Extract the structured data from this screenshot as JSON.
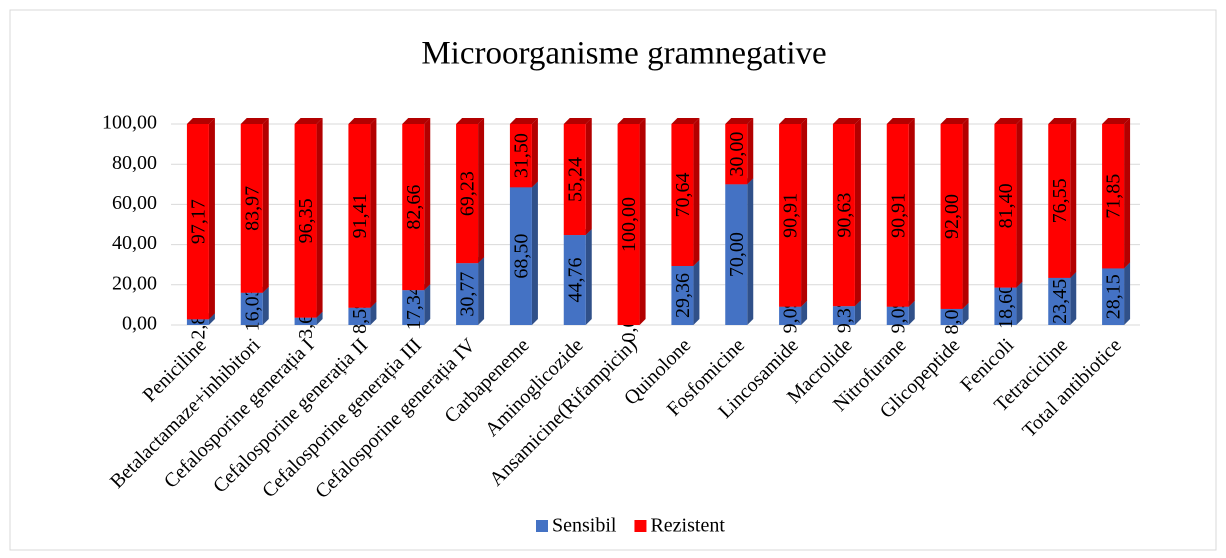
{
  "chart_data": {
    "type": "stacked_bar",
    "title": "Microorganisme gramnegative",
    "categories": [
      "Peniciline",
      "Betalactamaze+inhibitori",
      "Cefalosporine generația I",
      "Cefalosporine generația II",
      "Cefalosporine generația III",
      "Cefalosporine generația IV",
      "Carbapeneme",
      "Aminoglicozide",
      "Ansamicine(Rifampicin)",
      "Quinolone",
      "Fosfomicine",
      "Lincosamide",
      "Macrolide",
      "Nitrofurane",
      "Glicopeptide",
      "Fenicoli",
      "Tetracicline",
      "Total antibiotice"
    ],
    "series": [
      {
        "name": "Sensibil",
        "color": "#4472c4",
        "values": [
          2.83,
          16.03,
          3.65,
          8.59,
          17.34,
          30.77,
          68.5,
          44.76,
          0,
          29.36,
          70,
          9.09,
          9.37,
          9.09,
          8,
          18.6,
          23.45,
          28.15
        ],
        "value_labels": [
          "2,83",
          "16,03",
          "3,65",
          "8,59",
          "17,34",
          "30,77",
          "68,50",
          "44,76",
          "0,00",
          "29,36",
          "70,00",
          "9,09",
          "9,37",
          "9,09",
          "8,00",
          "18,60",
          "23,45",
          "28,15"
        ]
      },
      {
        "name": "Rezistent",
        "color": "#ff0000",
        "values": [
          97.17,
          83.97,
          96.35,
          91.41,
          82.66,
          69.23,
          31.5,
          55.24,
          100,
          70.64,
          30,
          90.91,
          90.63,
          90.91,
          92,
          81.4,
          76.55,
          71.85
        ],
        "value_labels": [
          "97,17",
          "83,97",
          "96,35",
          "91,41",
          "82,66",
          "69,23",
          "31,50",
          "55,24",
          "100,00",
          "70,64",
          "30,00",
          "90,91",
          "90,63",
          "90,91",
          "92,00",
          "81,40",
          "76,55",
          "71,85"
        ]
      }
    ],
    "ylim": [
      0,
      100
    ],
    "yticks": [
      {
        "value": 0,
        "label": "0,00"
      },
      {
        "value": 20,
        "label": "20,00"
      },
      {
        "value": 40,
        "label": "40,00"
      },
      {
        "value": 60,
        "label": "60,00"
      },
      {
        "value": 80,
        "label": "80,00"
      },
      {
        "value": 100,
        "label": "100,00"
      }
    ],
    "grid": true,
    "legend": "bottom"
  }
}
